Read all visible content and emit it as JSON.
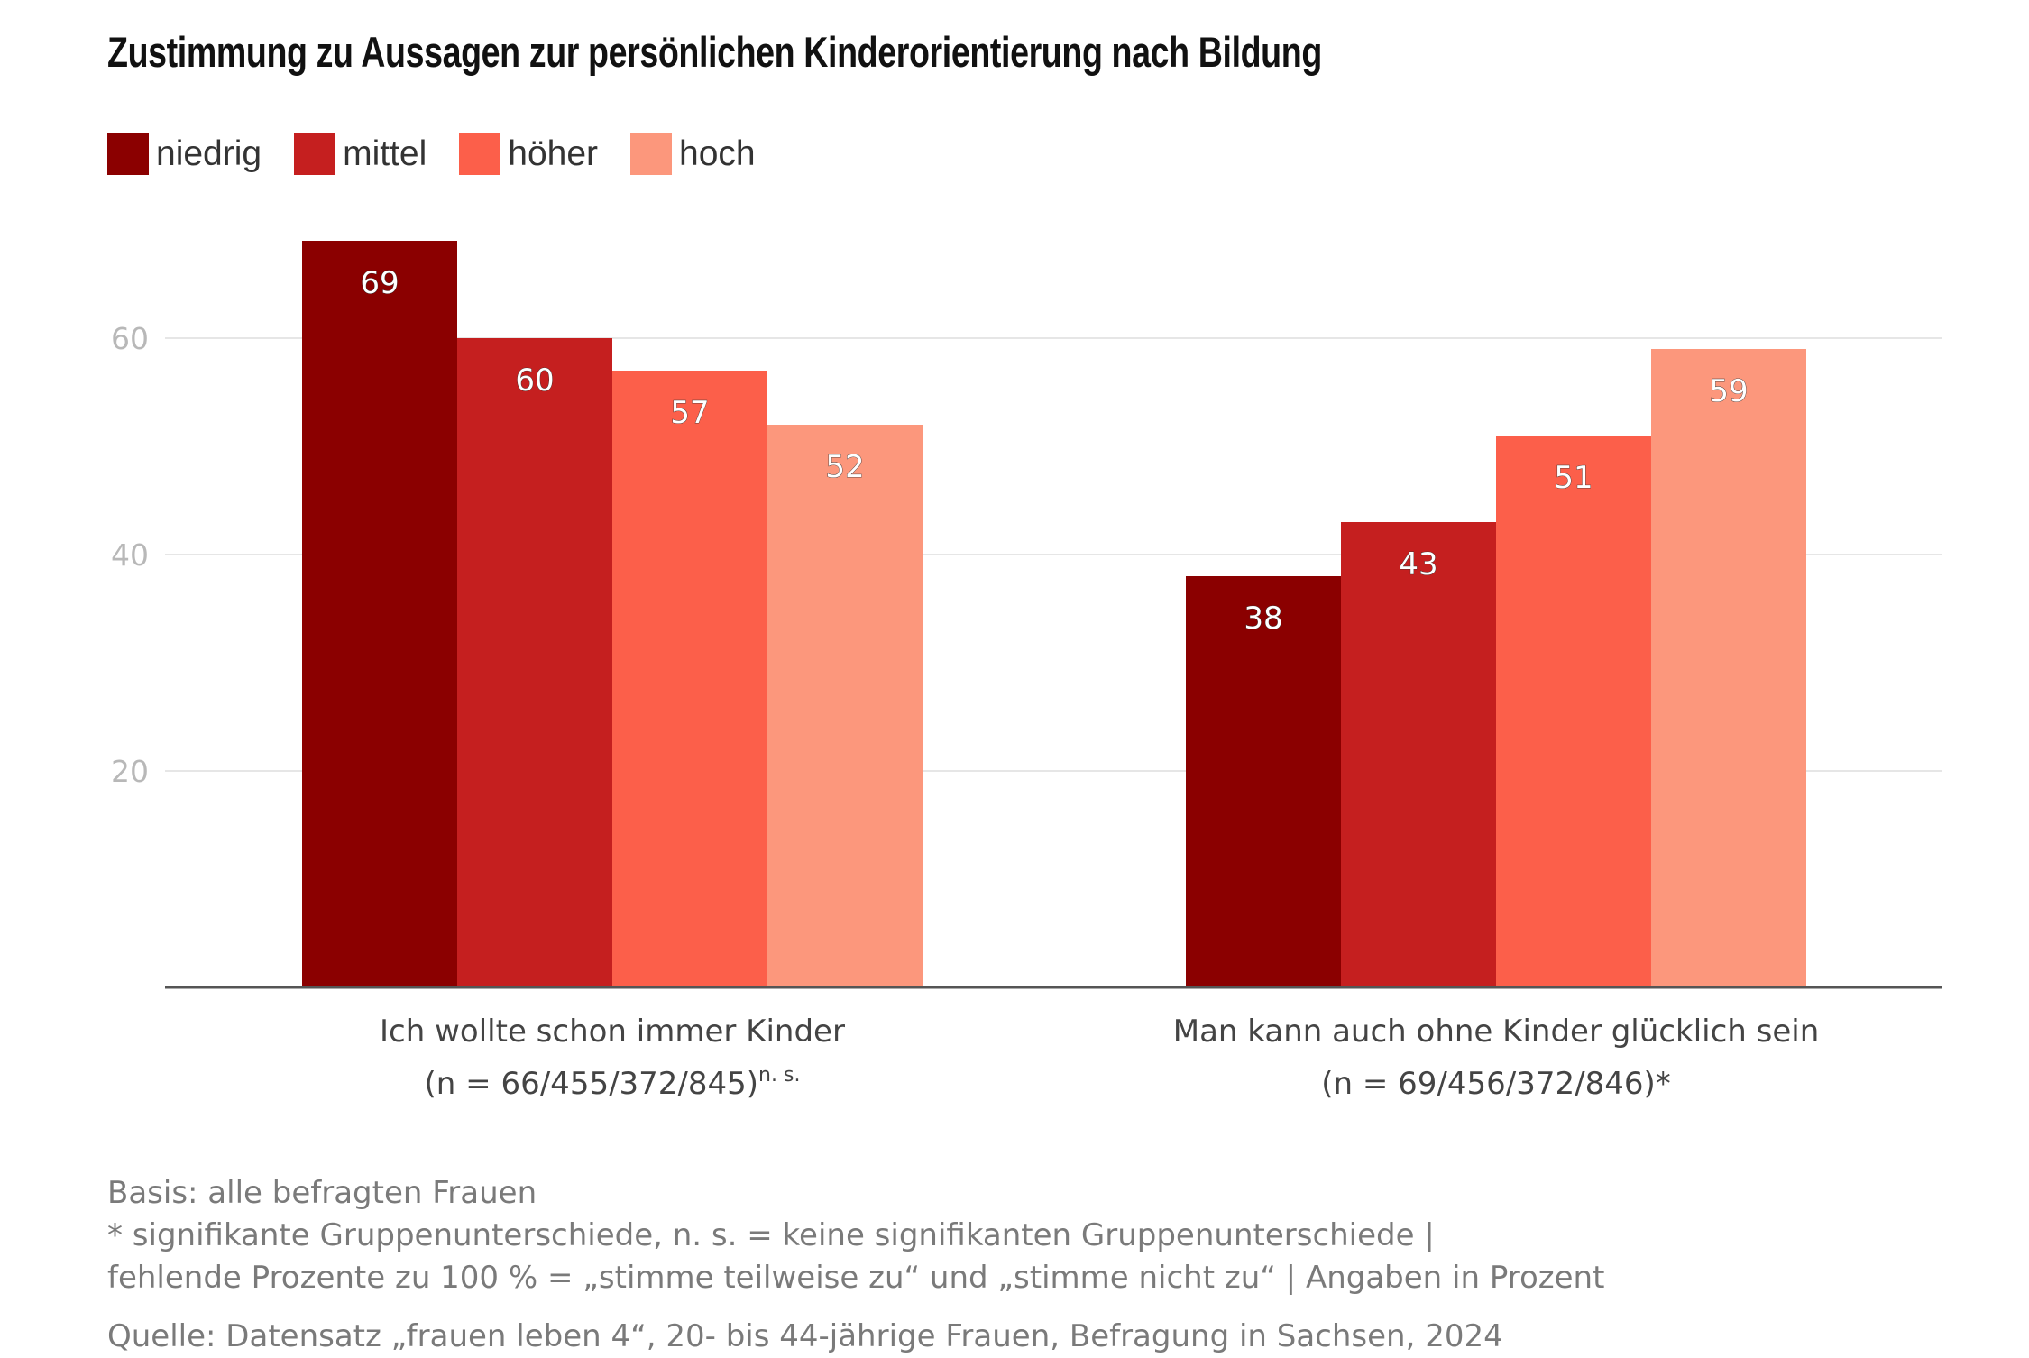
{
  "chart_data": {
    "type": "bar",
    "title": "Zustimmung zu Aussagen zur persönlichen Kinderorientierung nach Bildung",
    "categories": [
      {
        "label": "Ich wollte schon immer Kinder",
        "sample": "(n = 66/455/372/845)",
        "significance": "n. s."
      },
      {
        "label": "Man kann auch ohne Kinder glücklich sein",
        "sample": "(n = 69/456/372/846)*",
        "significance": ""
      }
    ],
    "series": [
      {
        "name": "niedrig",
        "color": "#8b0000",
        "values": [
          69,
          38
        ]
      },
      {
        "name": "mittel",
        "color": "#c51f1f",
        "values": [
          60,
          43
        ]
      },
      {
        "name": "höher",
        "color": "#fc5f4a",
        "values": [
          57,
          51
        ]
      },
      {
        "name": "hoch",
        "color": "#fc977c",
        "values": [
          52,
          59
        ]
      }
    ],
    "xlabel": "",
    "ylabel": "",
    "ylim": [
      0,
      70
    ],
    "yticks": [
      20,
      40,
      60
    ],
    "grid": true,
    "legend": "top-left",
    "data_labels": true
  },
  "footnotes": {
    "basis": "Basis: alle befragten Frauen",
    "significance": "* signifikante Gruppenunterschiede, n. s. = keine signifikanten Gruppenunterschiede |",
    "missing": "fehlende Prozente zu 100 % = „stimme teilweise zu“ und „stimme nicht zu“ | Angaben in Prozent",
    "source": "Quelle: Datensatz „frauen leben 4“, 20- bis 44-jährige Frauen, Befragung in Sachsen, 2024"
  }
}
